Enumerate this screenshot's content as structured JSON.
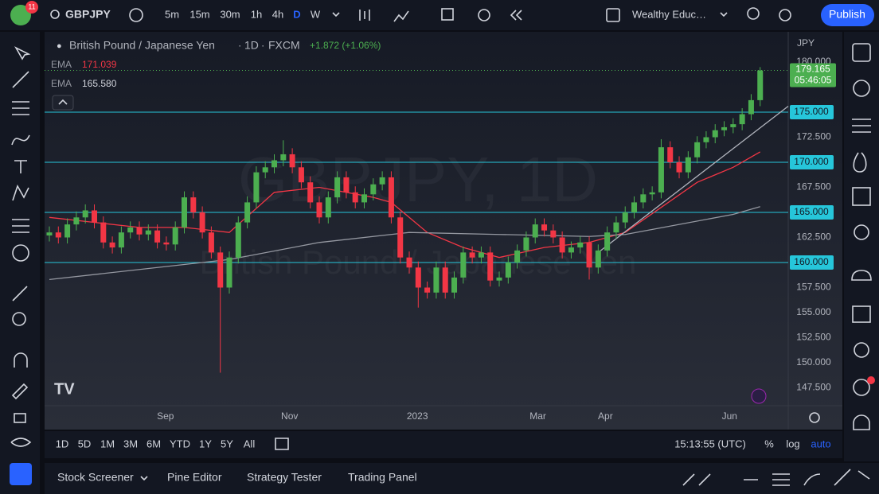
{
  "toolbar": {
    "badge": "11",
    "symbol": "GBPJPY",
    "intervals": [
      "5m",
      "15m",
      "30m",
      "1h",
      "4h",
      "D",
      "W"
    ],
    "active_interval": "D",
    "account": "Wealthy Educ…",
    "publish": "Publish"
  },
  "chart_data": {
    "type": "candlestick",
    "title": "British Pound / Japanese Yen",
    "interval": "1D",
    "source": "FXCM",
    "change": "+1.872 (+1.06%)",
    "watermark": "GBPJPY, 1D",
    "watermark_subtitle": "British Pound / Japanese Yen",
    "currency": "JPY",
    "up_color": "#4caf50",
    "down_color": "#f23645",
    "open": [
      162.7,
      163.0,
      162.5,
      163.8,
      164.5,
      165.2,
      164.0,
      162.0,
      161.5,
      163.0,
      163.5,
      162.8,
      163.2,
      162.0,
      161.8,
      163.5,
      166.5,
      165.0,
      163.0,
      161.0,
      157.5,
      160.5,
      164.0,
      166.0,
      169.0,
      169.5,
      170.2,
      170.8,
      169.5,
      168.0,
      166.0,
      164.5,
      166.5,
      168.5,
      167.0,
      166.0,
      166.8,
      167.8,
      168.5,
      164.5,
      160.5,
      159.5,
      157.5,
      157.0,
      159.5,
      157.0,
      158.5,
      161.0,
      160.5,
      161.0,
      158.2,
      158.5,
      160.0,
      161.2,
      162.5,
      163.8,
      163.2,
      162.5,
      161.0,
      161.5,
      162.0,
      159.5,
      161.2,
      163.0,
      164.0,
      165.0,
      166.0,
      166.8,
      167.0,
      171.5,
      170.0,
      169.0,
      170.5,
      172.0,
      172.5,
      173.2,
      173.5,
      173.8,
      174.8,
      176.2
    ],
    "high": [
      163.6,
      163.6,
      164.4,
      165.1,
      165.8,
      165.8,
      164.6,
      162.6,
      163.6,
      164.1,
      164.1,
      163.8,
      163.8,
      162.6,
      164.1,
      167.1,
      167.1,
      165.6,
      163.6,
      161.6,
      161.1,
      164.6,
      166.6,
      169.6,
      170.1,
      170.8,
      172.2,
      171.4,
      170.1,
      168.6,
      166.6,
      167.1,
      169.1,
      169.1,
      167.6,
      167.4,
      168.4,
      169.1,
      169.1,
      165.1,
      161.1,
      160.1,
      158.1,
      160.1,
      160.1,
      159.1,
      161.6,
      161.6,
      161.6,
      161.6,
      159.1,
      160.6,
      161.8,
      163.1,
      164.4,
      164.4,
      163.8,
      163.1,
      162.1,
      162.6,
      162.6,
      161.8,
      163.6,
      164.6,
      165.6,
      166.6,
      167.4,
      167.6,
      172.3,
      172.1,
      170.6,
      171.1,
      172.6,
      173.1,
      173.8,
      174.1,
      174.4,
      175.4,
      176.8,
      179.5
    ],
    "low": [
      162.1,
      161.9,
      161.9,
      163.2,
      163.9,
      163.4,
      161.4,
      160.9,
      160.9,
      162.4,
      162.2,
      162.2,
      161.4,
      161.2,
      161.2,
      162.9,
      164.4,
      162.4,
      160.4,
      149.0,
      156.9,
      159.9,
      163.4,
      165.4,
      168.4,
      168.9,
      169.6,
      168.9,
      167.4,
      165.4,
      163.9,
      163.9,
      165.9,
      166.4,
      165.4,
      165.4,
      166.2,
      167.2,
      163.9,
      159.9,
      158.9,
      155.5,
      156.4,
      156.4,
      156.4,
      156.4,
      157.9,
      159.9,
      159.9,
      157.6,
      157.6,
      157.9,
      159.4,
      160.6,
      161.9,
      162.6,
      161.9,
      160.4,
      160.4,
      160.9,
      158.3,
      158.9,
      160.6,
      162.4,
      163.4,
      164.4,
      165.4,
      166.2,
      166.4,
      169.4,
      168.4,
      168.4,
      169.9,
      171.4,
      171.9,
      172.6,
      172.9,
      173.2,
      174.2,
      175.6
    ],
    "close": [
      163.0,
      162.5,
      163.8,
      164.5,
      165.2,
      164.0,
      162.0,
      161.5,
      163.0,
      163.5,
      162.8,
      163.2,
      162.0,
      161.8,
      163.5,
      166.5,
      165.0,
      163.0,
      161.0,
      157.5,
      160.5,
      164.0,
      166.0,
      169.0,
      169.5,
      170.2,
      170.8,
      169.5,
      168.0,
      166.0,
      164.5,
      166.5,
      168.5,
      167.0,
      166.0,
      166.8,
      167.8,
      168.5,
      164.5,
      160.5,
      159.5,
      157.5,
      157.0,
      159.5,
      157.0,
      158.5,
      161.0,
      160.5,
      161.0,
      158.2,
      158.5,
      160.0,
      161.2,
      162.5,
      163.8,
      163.2,
      162.5,
      161.0,
      161.5,
      162.0,
      159.5,
      161.2,
      163.0,
      164.0,
      165.0,
      166.0,
      166.8,
      167.0,
      171.5,
      170.0,
      169.0,
      170.5,
      172.0,
      172.5,
      173.2,
      173.5,
      173.8,
      174.8,
      176.2,
      179.165
    ],
    "xlim": [
      -0.53,
      82.12
    ],
    "xticks": [
      {
        "value": 12.9,
        "label": "Sep"
      },
      {
        "value": 26.7,
        "label": "Nov"
      },
      {
        "value": 40.9,
        "label": "2023"
      },
      {
        "value": 54.3,
        "label": "Mar"
      },
      {
        "value": 61.8,
        "label": "Apr"
      },
      {
        "value": 75.6,
        "label": "Jun"
      }
    ],
    "ylim": [
      145.71,
      183.02
    ],
    "yticks": [
      {
        "value": 180,
        "label": "180.000"
      },
      {
        "value": 172.5,
        "label": "172.500"
      },
      {
        "value": 167.5,
        "label": "167.500"
      },
      {
        "value": 162.5,
        "label": "162.500"
      },
      {
        "value": 157.5,
        "label": "157.500"
      },
      {
        "value": 155,
        "label": "155.000"
      },
      {
        "value": 152.5,
        "label": "152.500"
      },
      {
        "value": 150,
        "label": "150.000"
      },
      {
        "value": 147.5,
        "label": "147.500"
      }
    ],
    "indicators": [
      {
        "name": "EMA",
        "color": "#f23645",
        "value_label": "171.039",
        "x": [
          0,
          10,
          15,
          20,
          25,
          30,
          36,
          38,
          42,
          46,
          50,
          55,
          60,
          64,
          68,
          72,
          76,
          79
        ],
        "values": [
          164.5,
          163.5,
          163.5,
          163,
          167,
          167.5,
          166.5,
          166,
          163,
          161.5,
          160.5,
          161.5,
          162,
          163,
          165.5,
          168,
          169.5,
          171.039
        ]
      },
      {
        "name": "EMA",
        "color": "#9598a1",
        "value_label": "165.580",
        "x": [
          0,
          20,
          30,
          40,
          50,
          60,
          64,
          70,
          76,
          79
        ],
        "values": [
          158.3,
          160.3,
          162.0,
          163.0,
          162.8,
          162.6,
          162.8,
          163.8,
          164.8,
          165.58
        ]
      }
    ],
    "levels": [
      {
        "value": 175,
        "label": "175.000"
      },
      {
        "value": 170,
        "label": "170.000"
      },
      {
        "value": 165,
        "label": "165.000"
      },
      {
        "value": 160,
        "label": "160.000"
      }
    ],
    "level_color": "#26c6da",
    "trendline": {
      "color": "#b2b5be",
      "x": [
        61,
        82.12
      ],
      "values": [
        161.0,
        175.6
      ]
    },
    "countdown": "05:46:05"
  },
  "bottom_bar": {
    "ranges": [
      "1D",
      "5D",
      "1M",
      "3M",
      "6M",
      "YTD",
      "1Y",
      "5Y",
      "All"
    ],
    "clock": "15:13:55 (UTC)",
    "options": [
      "%",
      "log",
      "auto"
    ]
  },
  "panel": {
    "tabs": [
      "Stock Screener",
      "Pine Editor",
      "Strategy Tester",
      "Trading Panel"
    ]
  }
}
